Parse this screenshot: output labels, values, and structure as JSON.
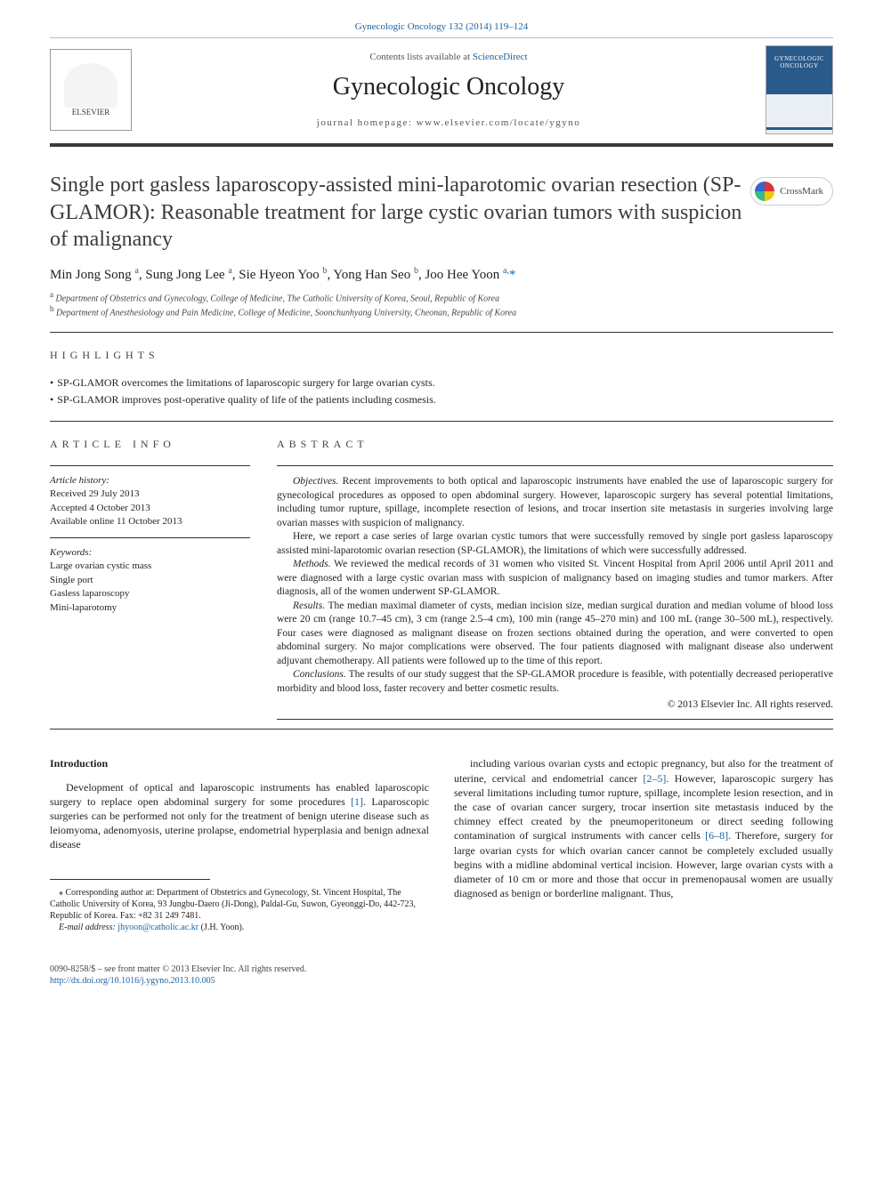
{
  "header": {
    "journal_ref_link": "Gynecologic Oncology 132 (2014) 119–124",
    "contents_prefix": "Contents lists available at ",
    "contents_link": "ScienceDirect",
    "journal_title": "Gynecologic Oncology",
    "homepage_label": "journal homepage: www.elsevier.com/locate/ygyno",
    "publisher_logo_text": "ELSEVIER",
    "cover_text": "GYNECOLOGIC ONCOLOGY"
  },
  "crossmark": {
    "label": "CrossMark"
  },
  "article": {
    "title": "Single port gasless laparoscopy-assisted mini-laparotomic ovarian resection (SP-GLAMOR): Reasonable treatment for large cystic ovarian tumors with suspicion of malignancy",
    "authors_html": "Min Jong Song <sup>a</sup>, Sung Jong Lee <sup>a</sup>, Sie Hyeon Yoo <sup>b</sup>, Yong Han Seo <sup>b</sup>, Joo Hee Yoon <sup>a,</sup><span class='corr'>*</span>",
    "affiliations": [
      {
        "sup": "a",
        "text": "Department of Obstetrics and Gynecology, College of Medicine, The Catholic University of Korea, Seoul, Republic of Korea"
      },
      {
        "sup": "b",
        "text": "Department of Anesthesiology and Pain Medicine, College of Medicine, Soonchunhyang University, Cheonan, Republic of Korea"
      }
    ]
  },
  "highlights": {
    "label": "HIGHLIGHTS",
    "items": [
      "SP-GLAMOR overcomes the limitations of laparoscopic surgery for large ovarian cysts.",
      "SP-GLAMOR improves post-operative quality of life of the patients including cosmesis."
    ]
  },
  "article_info": {
    "label": "ARTICLE INFO",
    "history_label": "Article history:",
    "history": [
      "Received 29 July 2013",
      "Accepted 4 October 2013",
      "Available online 11 October 2013"
    ],
    "keywords_label": "Keywords:",
    "keywords": [
      "Large ovarian cystic mass",
      "Single port",
      "Gasless laparoscopy",
      "Mini-laparotomy"
    ]
  },
  "abstract": {
    "label": "ABSTRACT",
    "sections": [
      {
        "label": "Objectives.",
        "text": " Recent improvements to both optical and laparoscopic instruments have enabled the use of laparoscopic surgery for gynecological procedures as opposed to open abdominal surgery. However, laparoscopic surgery has several potential limitations, including tumor rupture, spillage, incomplete resection of lesions, and trocar insertion site metastasis in surgeries involving large ovarian masses with suspicion of malignancy."
      },
      {
        "label": "",
        "text": "Here, we report a case series of large ovarian cystic tumors that were successfully removed by single port gasless laparoscopy assisted mini-laparotomic ovarian resection (SP-GLAMOR), the limitations of which were successfully addressed."
      },
      {
        "label": "Methods.",
        "text": " We reviewed the medical records of 31 women who visited St. Vincent Hospital from April 2006 until April 2011 and were diagnosed with a large cystic ovarian mass with suspicion of malignancy based on imaging studies and tumor markers. After diagnosis, all of the women underwent SP-GLAMOR."
      },
      {
        "label": "Results.",
        "text": " The median maximal diameter of cysts, median incision size, median surgical duration and median volume of blood loss were 20 cm (range 10.7–45 cm), 3 cm (range 2.5–4 cm), 100 min (range 45–270 min) and 100 mL (range 30–500 mL), respectively. Four cases were diagnosed as malignant disease on frozen sections obtained during the operation, and were converted to open abdominal surgery. No major complications were observed. The four patients diagnosed with malignant disease also underwent adjuvant chemotherapy. All patients were followed up to the time of this report."
      },
      {
        "label": "Conclusions.",
        "text": " The results of our study suggest that the SP-GLAMOR procedure is feasible, with potentially decreased perioperative morbidity and blood loss, faster recovery and better cosmetic results."
      }
    ],
    "copyright": "© 2013 Elsevier Inc. All rights reserved."
  },
  "introduction": {
    "heading": "Introduction",
    "para1_pre": "Development of optical and laparoscopic instruments has enabled laparoscopic surgery to replace open abdominal surgery for some procedures ",
    "ref1": "[1]",
    "para1_post": ". Laparoscopic surgeries can be performed not only for the treatment of benign uterine disease such as leiomyoma, adenomyosis, uterine prolapse, endometrial hyperplasia and benign adnexal disease",
    "para2_pre": "including various ovarian cysts and ectopic pregnancy, but also for the treatment of uterine, cervical and endometrial cancer ",
    "ref2": "[2–5]",
    "para2_mid": ". However, laparoscopic surgery has several limitations including tumor rupture, spillage, incomplete lesion resection, and in the case of ovarian cancer surgery, trocar insertion site metastasis induced by the chimney effect created by the pneumoperitoneum or direct seeding following contamination of surgical instruments with cancer cells ",
    "ref3": "[6–8]",
    "para2_post": ". Therefore, surgery for large ovarian cysts for which ovarian cancer cannot be completely excluded usually begins with a midline abdominal vertical incision. However, large ovarian cysts with a diameter of 10 cm or more and those that occur in premenopausal women are usually diagnosed as benign or borderline malignant. Thus,"
  },
  "footnotes": {
    "corr": "⁎ Corresponding author at: Department of Obstetrics and Gynecology, St. Vincent Hospital, The Catholic University of Korea, 93 Jungbu-Daero (Ji-Dong), Paldal-Gu, Suwon, Gyeonggi-Do, 442-723, Republic of Korea. Fax: +82 31 249 7481.",
    "email_label": "E-mail address: ",
    "email": "jhyoon@catholic.ac.kr",
    "email_suffix": " (J.H. Yoon)."
  },
  "footer": {
    "line1": "0090-8258/$ – see front matter © 2013 Elsevier Inc. All rights reserved.",
    "doi": "http://dx.doi.org/10.1016/j.ygyno.2013.10.005"
  },
  "colors": {
    "link": "#1b63a0",
    "text": "#231f20",
    "rule": "#333333",
    "cover_blue": "#2a5a8a"
  }
}
